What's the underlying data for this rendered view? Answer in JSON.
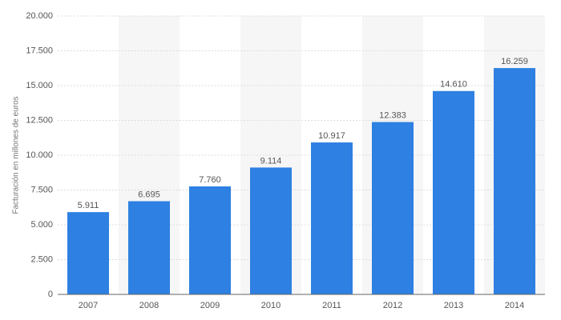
{
  "chart_data": {
    "type": "bar",
    "y_label": "Facturación en millones de euros",
    "categories": [
      "2007",
      "2008",
      "2009",
      "2010",
      "2011",
      "2012",
      "2013",
      "2014"
    ],
    "values": [
      5911,
      6695,
      7760,
      9114,
      10917,
      12383,
      14610,
      16259
    ],
    "value_labels": [
      "5.911",
      "6.695",
      "7.760",
      "9.114",
      "10.917",
      "12.383",
      "14.610",
      "16.259"
    ],
    "color": "#2e80e2",
    "ylim": [
      0,
      20000
    ],
    "yticks": [
      0,
      {
        "value": 2500,
        "label": "2.500"
      },
      {
        "value": 5000,
        "label": "5.000"
      },
      {
        "value": 7500,
        "label": "7.500"
      },
      {
        "value": 10000,
        "label": "10.000"
      },
      {
        "value": 12500,
        "label": "12.500"
      },
      {
        "value": 15000,
        "label": "15.000"
      },
      {
        "value": 17500,
        "label": "17.500"
      },
      {
        "value": 20000,
        "label": "20.000"
      }
    ],
    "grid": true
  }
}
